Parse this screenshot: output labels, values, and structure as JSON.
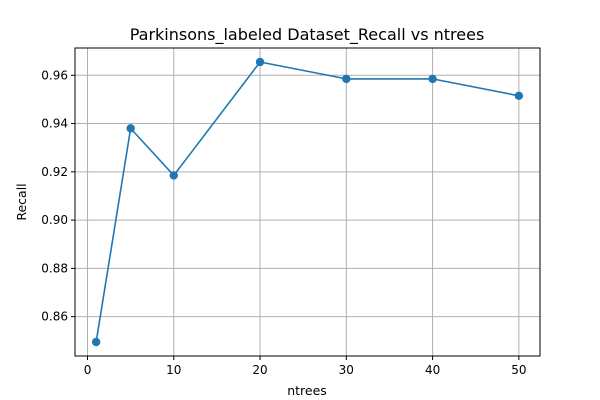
{
  "chart_data": {
    "type": "line",
    "title": "Parkinsons_labeled Dataset_Recall vs ntrees",
    "xlabel": "ntrees",
    "ylabel": "Recall",
    "x": [
      1,
      5,
      10,
      20,
      30,
      40,
      50
    ],
    "series": [
      {
        "values": [
          0.8495,
          0.938,
          0.9185,
          0.9655,
          0.9585,
          0.9585,
          0.9515
        ]
      }
    ],
    "xlim": [
      -1.45,
      52.45
    ],
    "ylim": [
      0.8437,
      0.9713
    ],
    "xticks": [
      0,
      10,
      20,
      30,
      40,
      50
    ],
    "yticks": [
      0.86,
      0.88,
      0.9,
      0.92,
      0.94,
      0.96
    ],
    "xtick_labels": [
      "0",
      "10",
      "20",
      "30",
      "40",
      "50"
    ],
    "ytick_labels": [
      "0.86",
      "0.88",
      "0.90",
      "0.92",
      "0.94",
      "0.96"
    ],
    "grid": true,
    "color": "#1f77b4",
    "marker": "circle"
  }
}
